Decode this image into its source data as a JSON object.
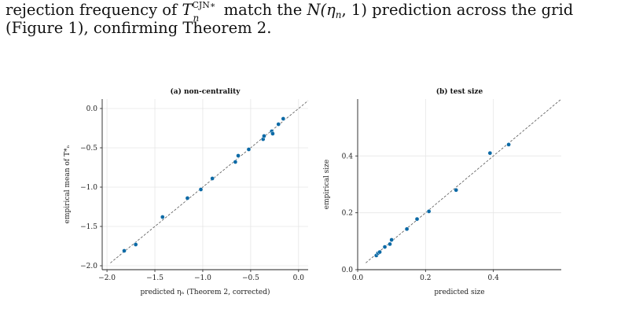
{
  "text": {
    "line1_a": "rejection frequency of ",
    "line1_stat": "T",
    "line1_sub": "n",
    "line1_sup": "CJN∗",
    "line1_b": " match the ",
    "line1_dist": "N(η",
    "line1_dist_sub": "n",
    "line1_dist_end": ", 1)",
    "line1_c": " prediction across the grid",
    "line2": "(Figure 1), confirming Theorem 2."
  },
  "colors": {
    "point": "#0c6aa6",
    "grid": "#e6e6e6",
    "axis": "#222222",
    "diagonal": "#555555"
  },
  "chart_data": [
    {
      "type": "scatter",
      "title": "(a) non-centrality",
      "xlabel": "predicted η_n (Theorem 2, corrected)",
      "ylabel": "empirical mean of T*_n",
      "xlim": [
        -2.05,
        0.1
      ],
      "ylim": [
        -2.05,
        0.12
      ],
      "xticks": [
        -2.0,
        -1.5,
        -1.0,
        -0.5,
        0.0
      ],
      "xtick_labels": [
        "−2.0",
        "−1.5",
        "−1.0",
        "−0.5",
        "0.0"
      ],
      "yticks": [
        -2.0,
        -1.5,
        -1.0,
        -0.5,
        0.0
      ],
      "ytick_labels": [
        "−2.0",
        "−1.5",
        "−1.0",
        "−0.5",
        "0.0"
      ],
      "grid": true,
      "reference_line": "y = x",
      "x": [
        -1.82,
        -1.7,
        -1.42,
        -1.16,
        -1.02,
        -0.9,
        -0.66,
        -0.63,
        -0.52,
        -0.37,
        -0.36,
        -0.28,
        -0.27,
        -0.21,
        -0.16
      ],
      "y": [
        -1.81,
        -1.73,
        -1.38,
        -1.14,
        -1.03,
        -0.89,
        -0.68,
        -0.6,
        -0.52,
        -0.39,
        -0.35,
        -0.29,
        -0.32,
        -0.2,
        -0.13
      ]
    },
    {
      "type": "scatter",
      "title": "(b) test size",
      "xlabel": "predicted size",
      "ylabel": "empirical size",
      "xlim": [
        0.0,
        0.6
      ],
      "ylim": [
        0.0,
        0.6
      ],
      "xticks": [
        0.0,
        0.2,
        0.4
      ],
      "xtick_labels": [
        "0.0",
        "0.2",
        "0.4"
      ],
      "yticks": [
        0.0,
        0.2,
        0.4
      ],
      "ytick_labels": [
        "0.0",
        "0.2",
        "0.4"
      ],
      "grid": true,
      "reference_line": "y = x",
      "x": [
        0.055,
        0.06,
        0.065,
        0.08,
        0.095,
        0.1,
        0.145,
        0.175,
        0.21,
        0.29,
        0.39,
        0.445
      ],
      "y": [
        0.05,
        0.058,
        0.062,
        0.08,
        0.09,
        0.105,
        0.143,
        0.178,
        0.205,
        0.28,
        0.41,
        0.44
      ]
    }
  ]
}
